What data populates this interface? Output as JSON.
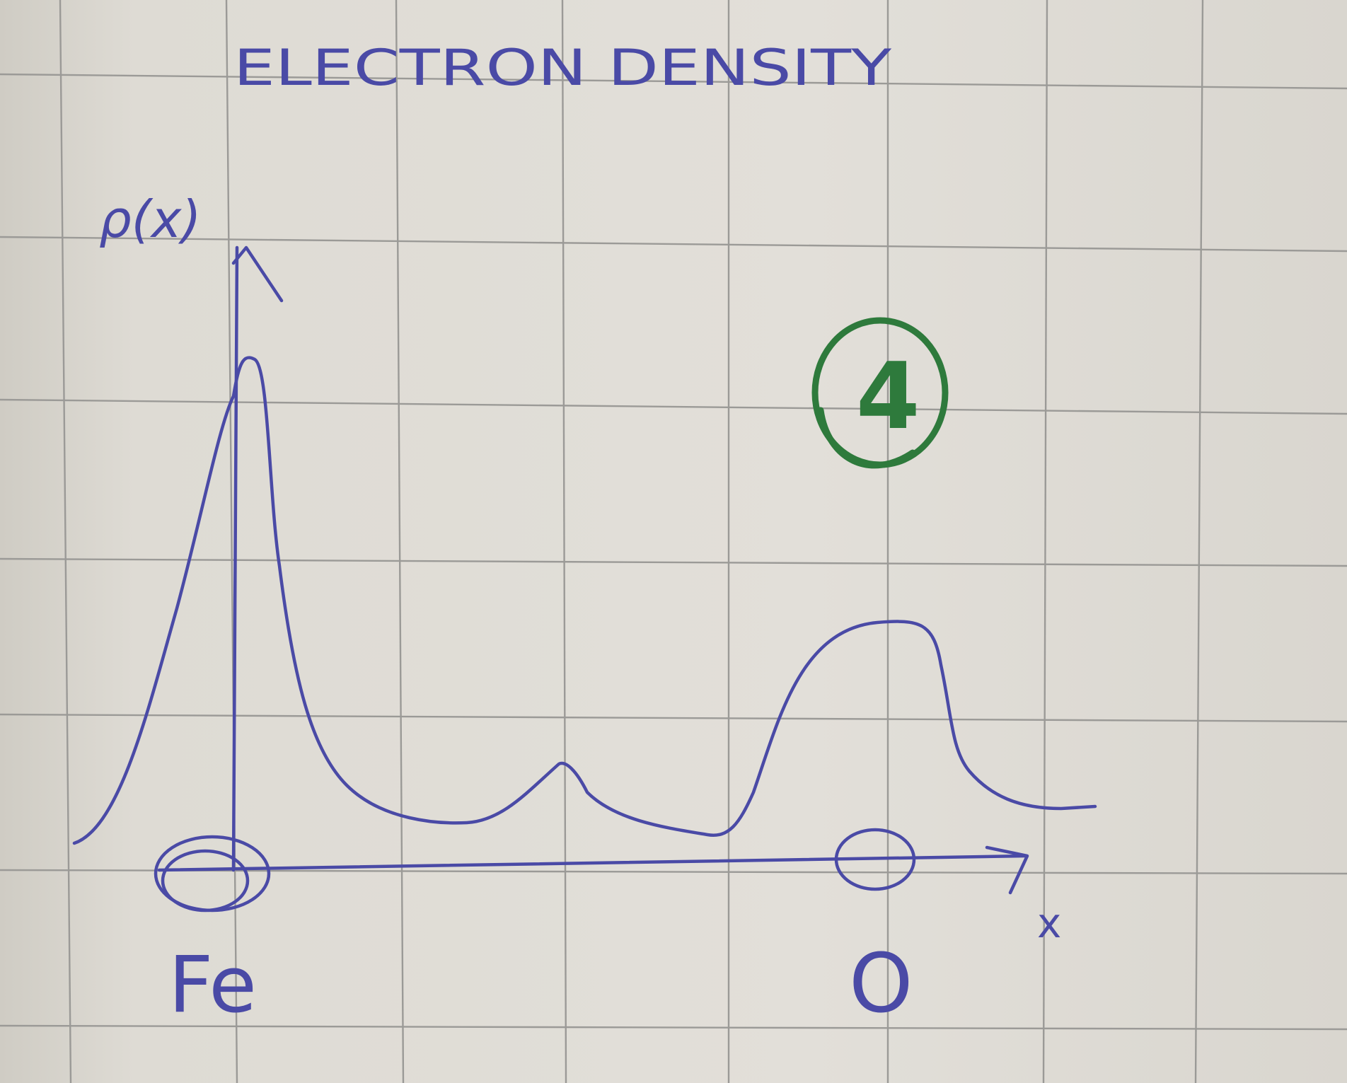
{
  "title": "ELECTRON DENSITY",
  "y_axis_label": "ρ(x)",
  "x_axis_label": "x",
  "atoms": {
    "left": "Fe",
    "right": "O"
  },
  "mark": "4",
  "colors": {
    "ink": "#4a4aa6",
    "mark": "#2e7a3c",
    "grid": "#9b9a97",
    "paper": "#e2dfd9"
  }
}
